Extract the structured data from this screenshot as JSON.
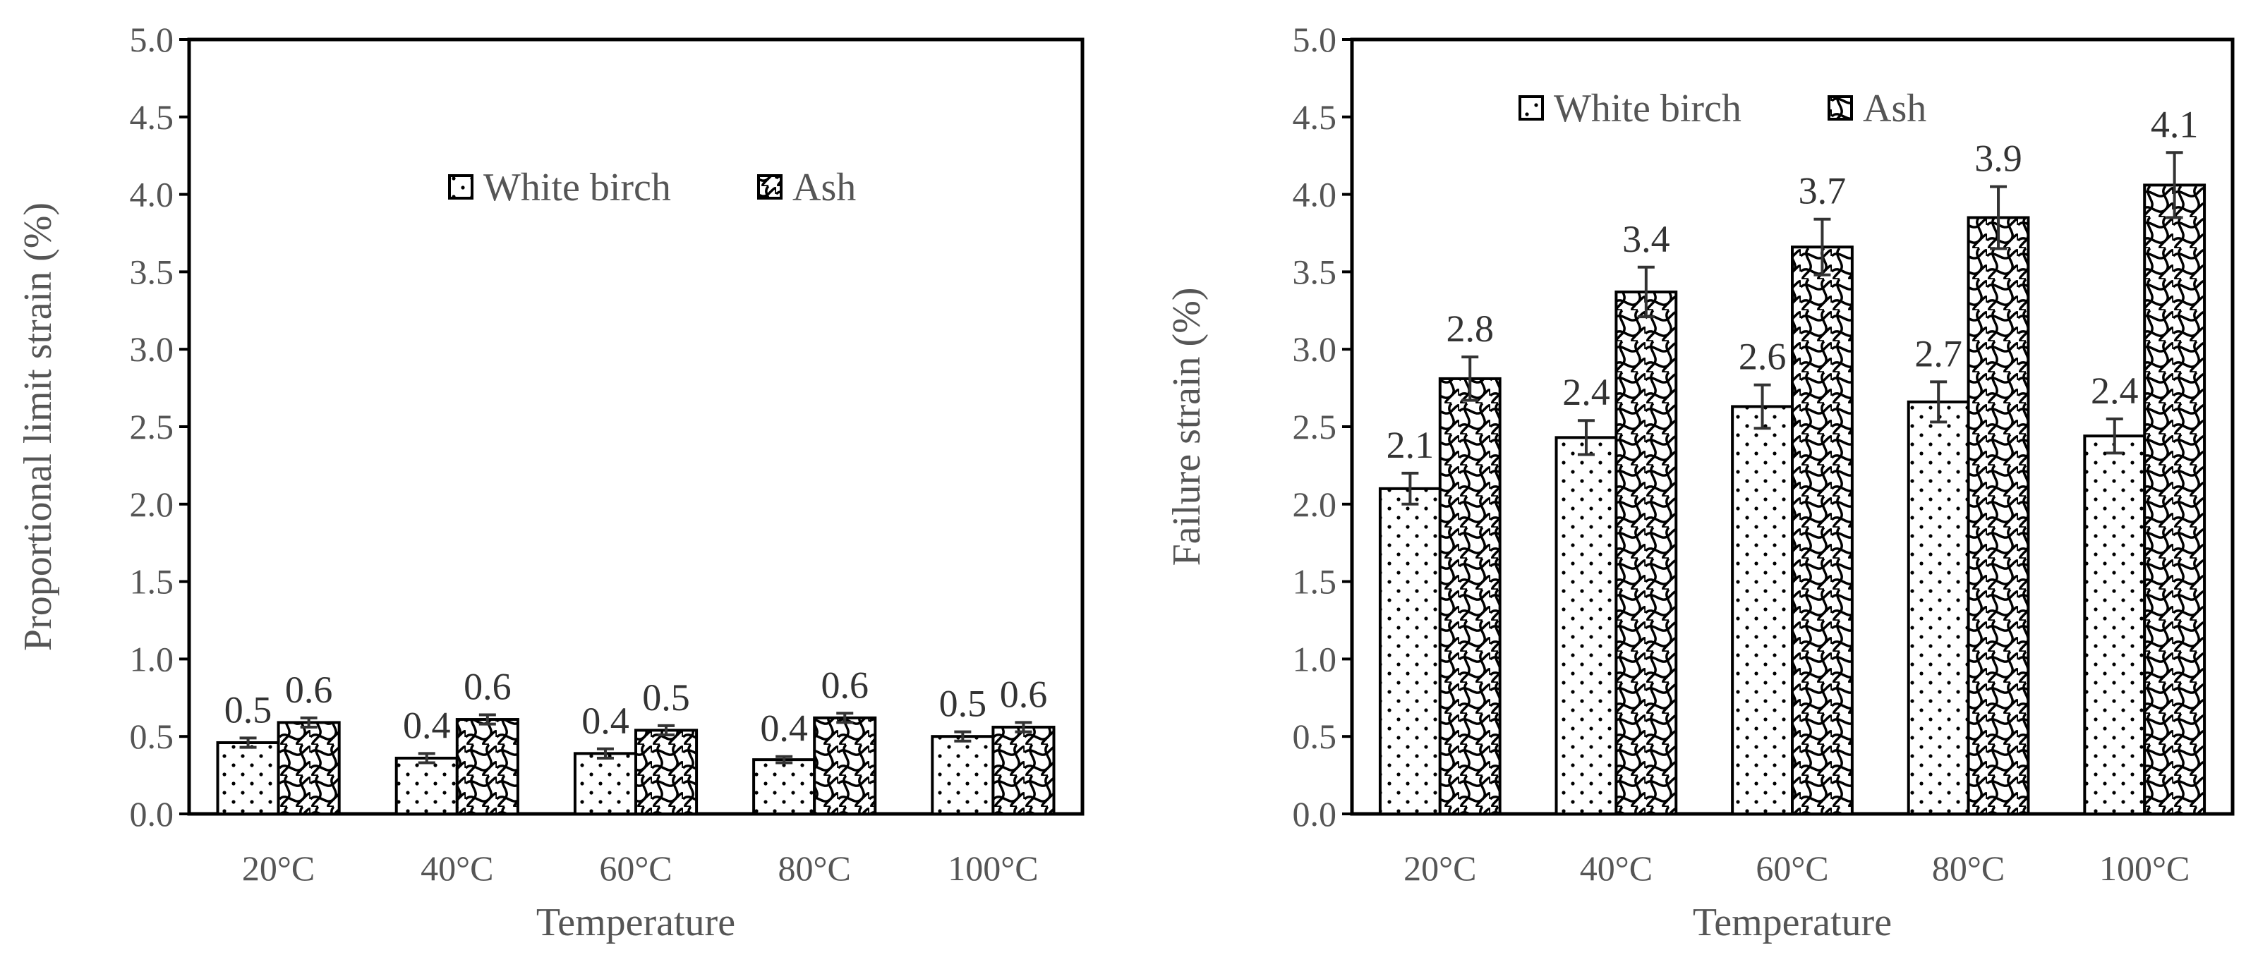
{
  "chart_data": [
    {
      "type": "bar",
      "title": "",
      "xlabel": "Temperature",
      "ylabel": "Proportional limit strain (%)",
      "ylim": [
        0,
        5
      ],
      "ytick_step": 0.5,
      "ytick_labels": [
        "0.0",
        "0.5",
        "1.0",
        "1.5",
        "2.0",
        "2.5",
        "3.0",
        "3.5",
        "4.0",
        "4.5",
        "5.0"
      ],
      "categories": [
        "20°C",
        "40°C",
        "60°C",
        "80°C",
        "100°C"
      ],
      "legend_position": "top-center",
      "grid": false,
      "series": [
        {
          "name": "White birch",
          "pattern": "dots",
          "values": [
            0.46,
            0.36,
            0.39,
            0.35,
            0.5
          ],
          "errors": [
            0.03,
            0.03,
            0.03,
            0.02,
            0.03
          ],
          "labels": [
            "0.5",
            "0.4",
            "0.4",
            "0.4",
            "0.5"
          ]
        },
        {
          "name": "Ash",
          "pattern": "weave",
          "values": [
            0.59,
            0.61,
            0.54,
            0.62,
            0.56
          ],
          "errors": [
            0.03,
            0.03,
            0.03,
            0.03,
            0.03
          ],
          "labels": [
            "0.6",
            "0.6",
            "0.5",
            "0.6",
            "0.6"
          ]
        }
      ]
    },
    {
      "type": "bar",
      "title": "",
      "xlabel": "Temperature",
      "ylabel": "Failure strain (%)",
      "ylim": [
        0,
        5
      ],
      "ytick_step": 0.5,
      "ytick_labels": [
        "0.0",
        "0.5",
        "1.0",
        "1.5",
        "2.0",
        "2.5",
        "3.0",
        "3.5",
        "4.0",
        "4.5",
        "5.0"
      ],
      "categories": [
        "20°C",
        "40°C",
        "60°C",
        "80°C",
        "100°C"
      ],
      "legend_position": "top-left",
      "grid": false,
      "series": [
        {
          "name": "White birch",
          "pattern": "dots",
          "values": [
            2.1,
            2.43,
            2.63,
            2.66,
            2.44
          ],
          "errors": [
            0.1,
            0.11,
            0.14,
            0.13,
            0.11
          ],
          "labels": [
            "2.1",
            "2.4",
            "2.6",
            "2.7",
            "2.4"
          ]
        },
        {
          "name": "Ash",
          "pattern": "weave",
          "values": [
            2.81,
            3.37,
            3.66,
            3.85,
            4.06
          ],
          "errors": [
            0.14,
            0.16,
            0.18,
            0.2,
            0.21
          ],
          "labels": [
            "2.8",
            "3.4",
            "3.7",
            "3.9",
            "4.1"
          ]
        }
      ]
    }
  ],
  "colors": {
    "bar_fill": "#ffffff",
    "bar_stroke": "#000000",
    "pattern": "#000000",
    "axis": "#000000",
    "text": "#555555",
    "errorbar": "#333333"
  }
}
